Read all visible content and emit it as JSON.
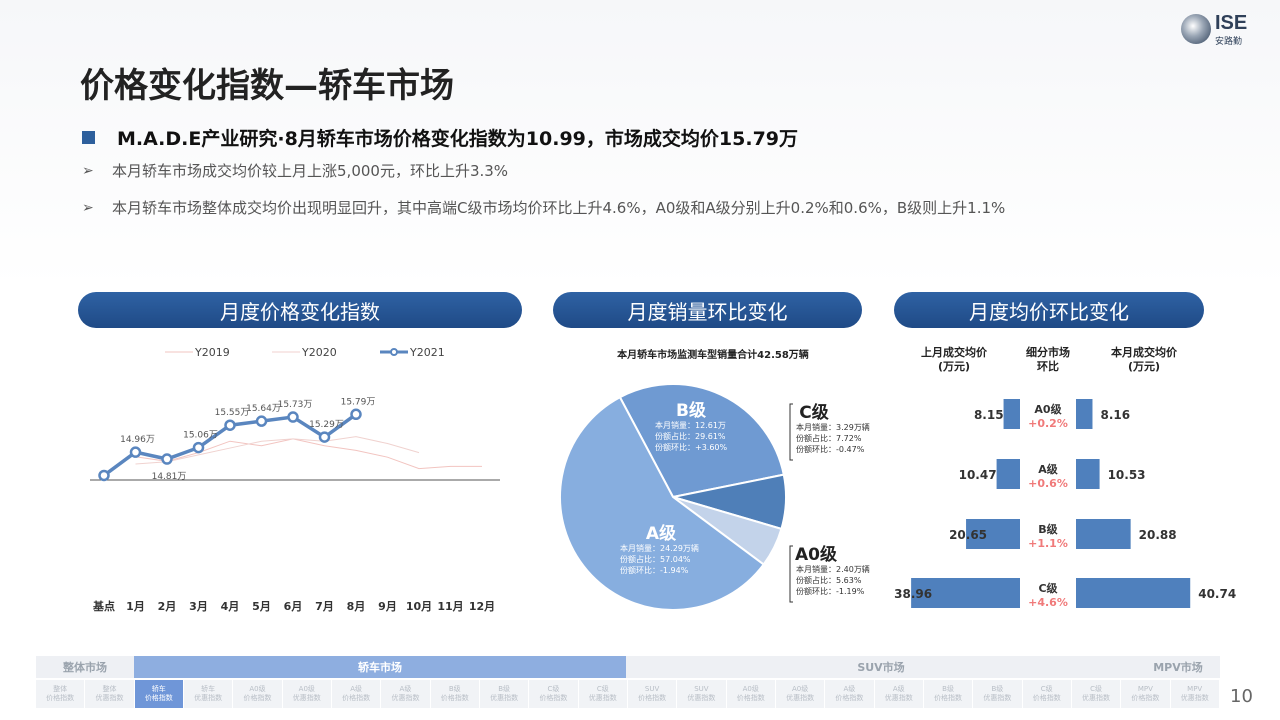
{
  "logo": {
    "text": "ISE",
    "subtext": "安路勤"
  },
  "title": "价格变化指数—轿车市场",
  "headline": "M.A.D.E产业研究·8月轿车市场价格变化指数为10.99，市场成交均价15.79万",
  "bullets": [
    "本月轿车市场成交均价较上月上涨5,000元，环比上升3.3%",
    "本月轿车市场整体成交均价出现明显回升，其中高端C级市场均价环比上升4.6%，A0级和A级分别上升0.2%和0.6%，B级则上升1.1%"
  ],
  "sections": {
    "index": "月度价格变化指数",
    "sales": "月度销量环比变化",
    "price": "月度均价环比变化"
  },
  "chart_data": [
    {
      "type": "line",
      "categories": [
        "基点",
        "1月",
        "2月",
        "3月",
        "4月",
        "5月",
        "6月",
        "7月",
        "8月",
        "9月",
        "10月",
        "11月",
        "12月"
      ],
      "series": [
        {
          "name": "Y2019",
          "values": [
            null,
            14.86,
            14.76,
            14.95,
            15.2,
            15.1,
            15.25,
            15.1,
            15.0,
            14.85,
            14.6,
            14.65,
            14.65
          ]
        },
        {
          "name": "Y2020",
          "values": [
            null,
            14.7,
            14.75,
            14.9,
            15.05,
            15.2,
            15.25,
            15.2,
            15.3,
            15.15,
            14.95,
            null,
            null
          ]
        },
        {
          "name": "Y2021",
          "values": [
            14.45,
            14.96,
            14.81,
            15.06,
            15.55,
            15.64,
            15.73,
            15.29,
            15.79,
            null,
            null,
            null,
            null
          ]
        }
      ],
      "data_labels": [
        "",
        "14.96万",
        "14.81万",
        "15.06万",
        "15.55万",
        "15.64万",
        "15.73万",
        "15.29万",
        "15.79万"
      ],
      "legend": "top"
    },
    {
      "type": "pie",
      "title": "本月轿车市场监测车型销量合计42.58万辆",
      "slices": [
        {
          "name": "B级",
          "sales_label": "本月销量：",
          "sales": "12.61万",
          "share_label": "份额占比：",
          "share": "29.61%",
          "mom_label": "份额环比：",
          "mom": "+3.60%",
          "value": 29.61,
          "color": "#6f9ad2"
        },
        {
          "name": "C级",
          "sales_label": "本月销量：",
          "sales": "3.29万辆",
          "share_label": "份额占比：",
          "share": "7.72%",
          "mom_label": "份额环比：",
          "mom": "-0.47%",
          "value": 7.72,
          "color": "#4f7fb8"
        },
        {
          "name": "A0级",
          "sales_label": "本月销量：",
          "sales": "2.40万辆",
          "share_label": "份额占比：",
          "share": "5.63%",
          "mom_label": "份额环比：",
          "mom": "-1.19%",
          "value": 5.63,
          "color": "#c3d3ea"
        },
        {
          "name": "A级",
          "sales_label": "本月销量：",
          "sales": "24.29万辆",
          "share_label": "份额占比：",
          "share": "57.04%",
          "mom_label": "份额环比：",
          "mom": "-1.94%",
          "value": 57.04,
          "color": "#87aedf"
        }
      ]
    },
    {
      "type": "bar",
      "headers": [
        "上月成交均价\n(万元)",
        "细分市场\n环比",
        "本月成交均价\n(万元)"
      ],
      "categories": [
        "A0级",
        "A级",
        "B级",
        "C级"
      ],
      "last_month": [
        8.15,
        10.47,
        20.65,
        38.96
      ],
      "this_month": [
        8.16,
        10.53,
        20.88,
        40.74
      ],
      "this_month_labels": [
        "8.16",
        "10.53",
        "20.88",
        "40.74"
      ],
      "change": [
        "+0.2%",
        "+0.6%",
        "+1.1%",
        "+4.6%"
      ]
    }
  ],
  "nav": {
    "top": [
      "整体市场",
      "轿车市场",
      "SUV市场",
      "MPV市场"
    ],
    "bottom": [
      "整体\n价格指数",
      "整体\n优惠指数",
      "轿车\n价格指数",
      "轿车\n优惠指数",
      "A0级\n价格指数",
      "A0级\n优惠指数",
      "A级\n价格指数",
      "A级\n优惠指数",
      "B级\n价格指数",
      "B级\n优惠指数",
      "C级\n价格指数",
      "C级\n优惠指数",
      "SUV\n价格指数",
      "SUV\n优惠指数",
      "A0级\n价格指数",
      "A0级\n优惠指数",
      "A级\n价格指数",
      "A级\n优惠指数",
      "B级\n价格指数",
      "B级\n优惠指数",
      "C级\n价格指数",
      "C级\n优惠指数",
      "MPV\n价格指数",
      "MPV\n优惠指数"
    ]
  },
  "page_number": "10"
}
